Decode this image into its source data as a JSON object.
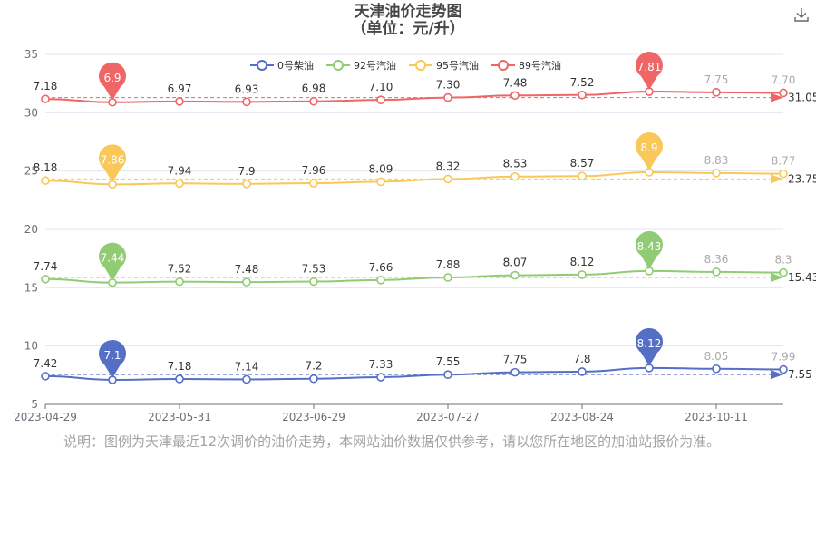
{
  "header": {
    "title_line1": "天津油价走势图",
    "title_line2": "（单位：元/升）",
    "download_icon": "download-icon"
  },
  "note": "说明：图例为天津最近12次调价的油价走势，本网站油价数据仅供参考，请以您所在地区的加油站报价为准。",
  "chart_data": {
    "type": "line",
    "x_tick_labels": [
      "2023-04-29",
      "2023-05-31",
      "2023-06-29",
      "2023-07-27",
      "2023-08-24",
      "2023-10-11"
    ],
    "ylim": [
      5,
      35
    ],
    "y_ticks": [
      5,
      10,
      15,
      20,
      25,
      30,
      35
    ],
    "grid": true,
    "legend_position": "top-center",
    "series": [
      {
        "name": "0号柴油",
        "color": "#5470c6",
        "values": [
          7.42,
          7.1,
          7.18,
          7.14,
          7.2,
          7.33,
          7.55,
          7.75,
          7.8,
          8.12,
          8.05,
          7.99
        ],
        "labels": [
          "7.42",
          "",
          "7.18",
          "7.14",
          "7.2",
          "7.33",
          "7.55",
          "7.75",
          "7.8",
          "",
          "8.05",
          "7.99"
        ],
        "min_label": "7.1",
        "max_label": "8.12",
        "avg_label": "7.55"
      },
      {
        "name": "92号汽油",
        "color": "#91cc75",
        "values": [
          7.74,
          7.44,
          7.52,
          7.48,
          7.53,
          7.66,
          7.88,
          8.07,
          8.12,
          8.43,
          8.36,
          8.3
        ],
        "labels": [
          "7.74",
          "",
          "7.52",
          "7.48",
          "7.53",
          "7.66",
          "7.88",
          "8.07",
          "8.12",
          "",
          "8.36",
          "8.3"
        ],
        "min_label": "7.44",
        "max_label": "8.43",
        "avg_label": "15.43"
      },
      {
        "name": "95号汽油",
        "color": "#fac858",
        "values": [
          8.18,
          7.86,
          7.94,
          7.9,
          7.96,
          8.09,
          8.32,
          8.53,
          8.57,
          8.9,
          8.83,
          8.77
        ],
        "labels": [
          "8.18",
          "",
          "7.94",
          "7.9",
          "7.96",
          "8.09",
          "8.32",
          "8.53",
          "8.57",
          "",
          "8.83",
          "8.77"
        ],
        "min_label": "7.86",
        "max_label": "8.9",
        "avg_label": "23.75"
      },
      {
        "name": "89号汽油",
        "color": "#ee6666",
        "values": [
          7.18,
          6.9,
          6.97,
          6.93,
          6.98,
          7.1,
          7.3,
          7.48,
          7.52,
          7.81,
          7.75,
          7.7
        ],
        "labels": [
          "7.18",
          "",
          "6.97",
          "6.93",
          "6.98",
          "7.10",
          "7.30",
          "7.48",
          "7.52",
          "",
          "7.75",
          "7.70"
        ],
        "min_label": "6.9",
        "max_label": "7.81",
        "avg_label": "31.05"
      }
    ]
  }
}
